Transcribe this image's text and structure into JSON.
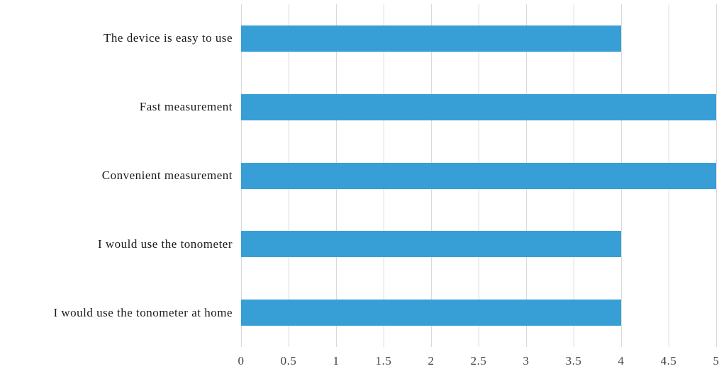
{
  "chart_data": {
    "type": "bar",
    "orientation": "horizontal",
    "title": "",
    "xlabel": "",
    "ylabel": "",
    "xlim": [
      0,
      5
    ],
    "grid": "vertical",
    "categories": [
      "The device is easy to use",
      "Fast measurement",
      "Convenient measurement",
      "I would use the tonometer",
      "I would use the tonometer at home"
    ],
    "values": [
      4,
      5,
      5,
      4,
      4
    ],
    "ticks": [
      0,
      0.5,
      1,
      1.5,
      2,
      2.5,
      3,
      3.5,
      4,
      4.5,
      5
    ],
    "tick_labels": [
      "0",
      "0.5",
      "1",
      "1.5",
      "2",
      "2.5",
      "3",
      "3.5",
      "4",
      "4.5",
      "5"
    ],
    "bar_color": "#379fd6",
    "gridline_color": "#d9d9d9",
    "legend": "none"
  }
}
